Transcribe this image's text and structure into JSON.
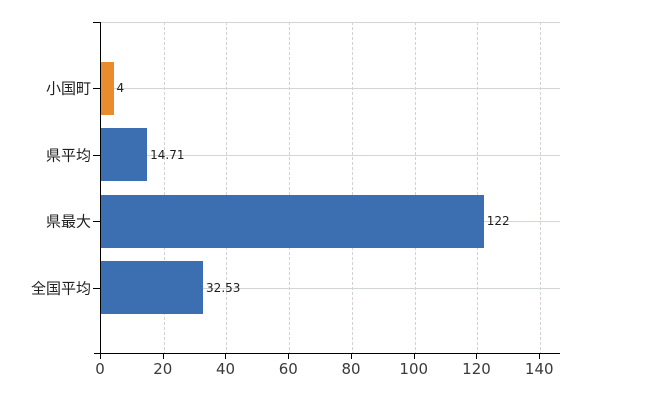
{
  "chart_data": {
    "type": "bar",
    "orientation": "horizontal",
    "title": "",
    "xlabel": "",
    "ylabel": "",
    "categories": [
      "小国町",
      "県平均",
      "県最大",
      "全国平均"
    ],
    "values": [
      4,
      14.71,
      122,
      32.53
    ],
    "value_labels": [
      "4",
      "14.71",
      "122",
      "32.53"
    ],
    "bar_colors": [
      "#E88C2E",
      "#3C6FB2",
      "#3C6FB2",
      "#3C6FB2"
    ],
    "highlight_color": "#E88C2E",
    "default_color": "#3C6FB2",
    "x_axis": {
      "min": 0,
      "max": 146.3,
      "tick_values": [
        0,
        20,
        40,
        60,
        80,
        100,
        120,
        140
      ],
      "tick_labels": [
        "0",
        "20",
        "40",
        "60",
        "80",
        "100",
        "120",
        "140"
      ]
    },
    "grid": {
      "show": true,
      "h_color": "#D2D7D2",
      "v_color": "#D5D0D4"
    },
    "axis_color": "#000000",
    "text_color": "#1F1F1F",
    "background": "#FFFFFF",
    "legend": false
  }
}
